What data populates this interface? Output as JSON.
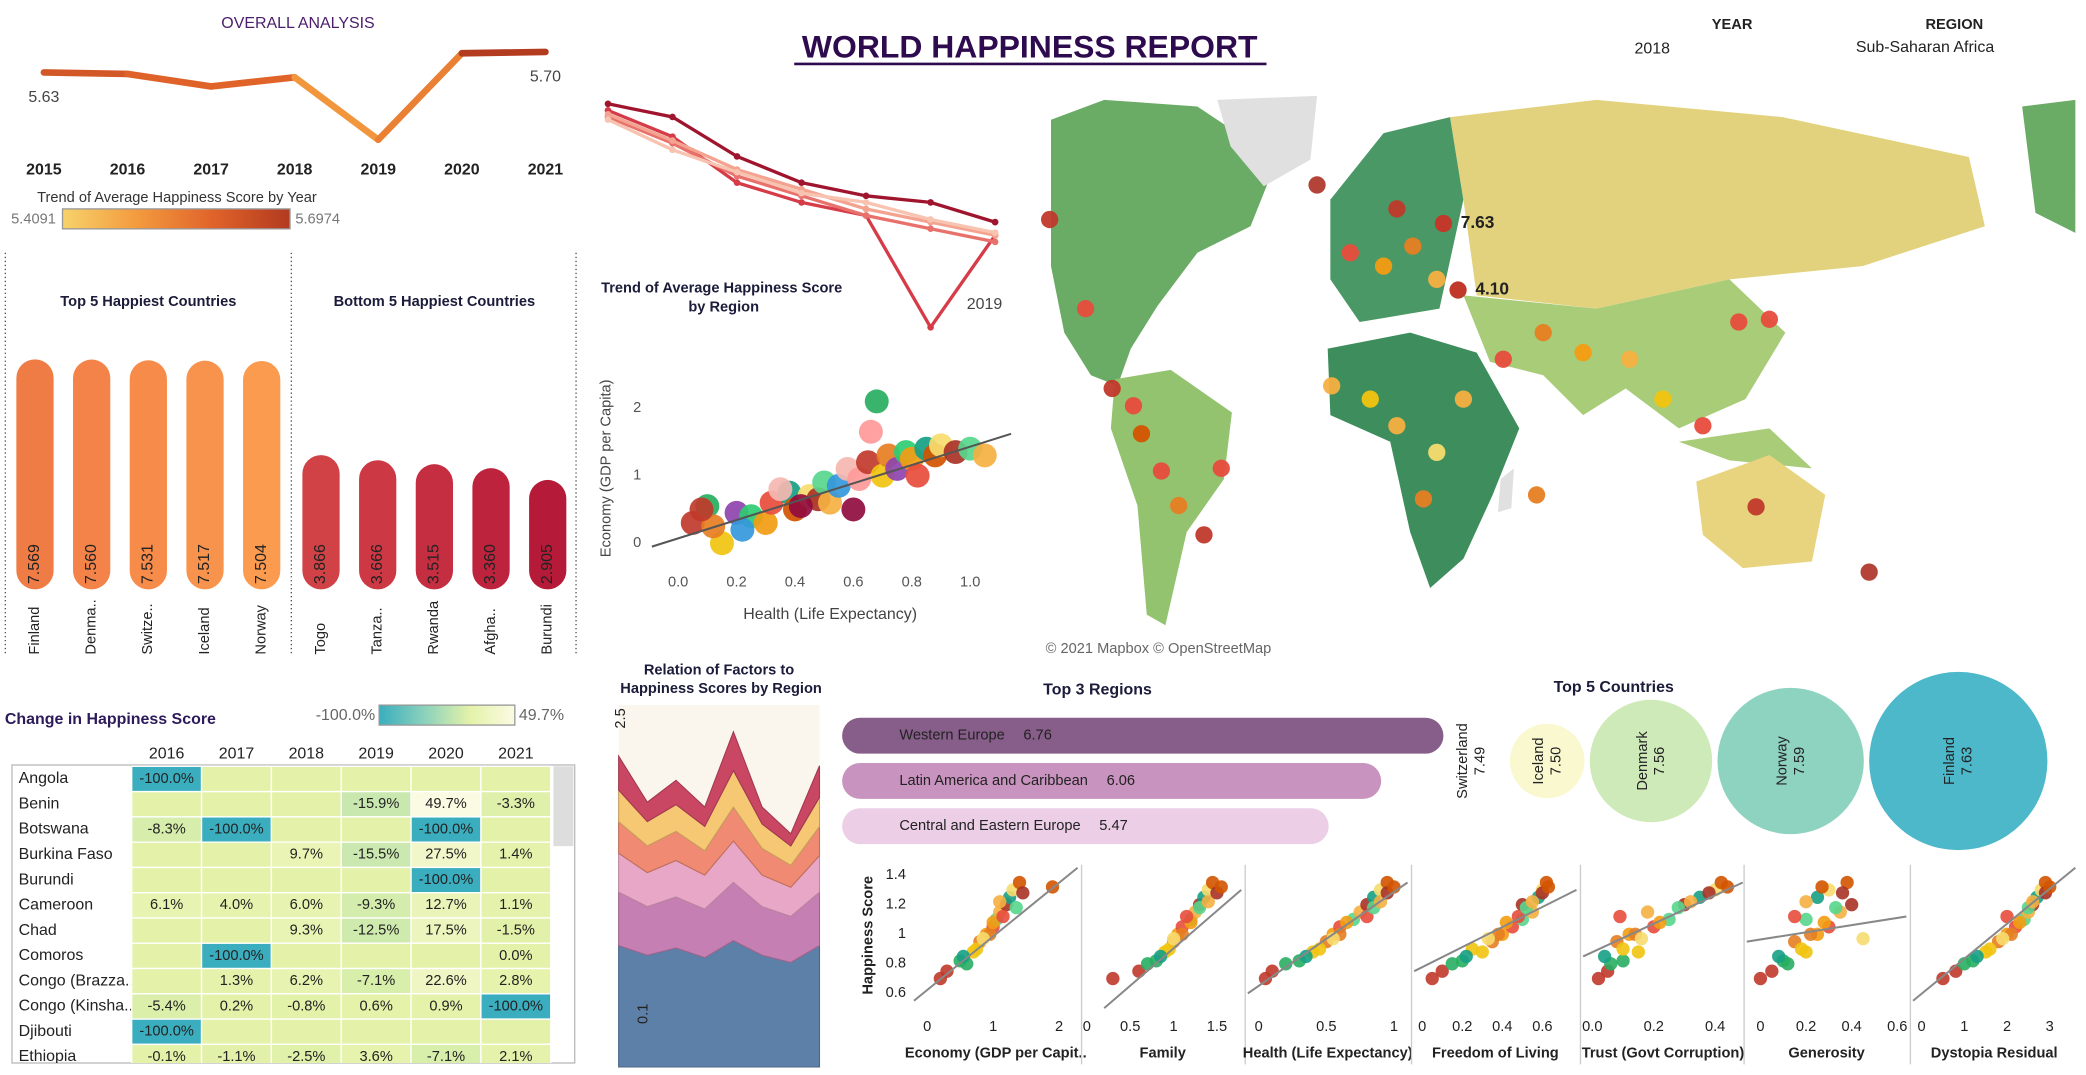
{
  "header": {
    "title": "WORLD HAPPINESS REPORT"
  },
  "filters": {
    "year_label": "YEAR",
    "year": 2018,
    "region_label": "REGION",
    "region": "Sub-Saharan Africa"
  },
  "chart_data": [
    {
      "type": "line",
      "title": "OVERALL ANALYSIS",
      "subtitle": "Trend of Average Happiness Score by Year",
      "categories": [
        2015,
        2016,
        2017,
        2018,
        2019,
        2020,
        2021
      ],
      "values": [
        5.63,
        5.625,
        5.584,
        5.614,
        5.4091,
        5.693,
        5.6974
      ],
      "value_labels": [
        "5.63",
        null,
        null,
        null,
        null,
        null,
        "5.70"
      ],
      "color_range": [
        5.4091,
        5.6974
      ]
    },
    {
      "type": "bar",
      "title": "Top 5 Happiest Countries",
      "categories": [
        "Finland",
        "Denma..",
        "Switze..",
        "Iceland",
        "Norway"
      ],
      "values": [
        7.569,
        7.56,
        7.531,
        7.517,
        7.504
      ],
      "value_labels": [
        "7.569",
        "7.560",
        "7.531",
        "7.517",
        "7.504"
      ],
      "colors": [
        "#f07c45",
        "#f38348",
        "#f68b4a",
        "#f8934d",
        "#fb9b50"
      ]
    },
    {
      "type": "bar",
      "title": "Bottom 5 Happiest Countries",
      "categories": [
        "Togo",
        "Tanza..",
        "Rwanda",
        "Afgha..",
        "Burundi"
      ],
      "values": [
        3.866,
        3.666,
        3.515,
        3.36,
        2.905
      ],
      "value_labels": [
        "3.866",
        "3.666",
        "3.515",
        "3.360",
        "2.905"
      ],
      "colors": [
        "#d04245",
        "#cc3844",
        "#c52e41",
        "#bd233d",
        "#b51b38"
      ]
    },
    {
      "type": "line",
      "title": "Trend of Average Happiness Score by Region",
      "annotation": 2019,
      "series": [
        {
          "color": "#a0152e",
          "values": [
            7.6,
            7.5,
            7.2,
            7.0,
            6.9,
            6.85,
            6.7
          ]
        },
        {
          "color": "#d63c48",
          "values": [
            7.55,
            7.35,
            7.0,
            6.85,
            6.75,
            5.9,
            6.6
          ]
        },
        {
          "color": "#e8716b",
          "values": [
            7.5,
            7.3,
            7.05,
            6.9,
            6.75,
            6.65,
            6.55
          ]
        },
        {
          "color": "#f3a38f",
          "values": [
            7.52,
            7.32,
            7.1,
            6.95,
            6.8,
            6.7,
            6.6
          ]
        },
        {
          "color": "#f8c3b0",
          "values": [
            7.48,
            7.25,
            7.08,
            6.92,
            6.85,
            6.72,
            6.62
          ]
        }
      ]
    },
    {
      "type": "scatter",
      "x_label": "Health (Life Expectancy)",
      "y_label": "Economy (GDP per Capita)",
      "xlim": [
        -0.09,
        1.14
      ],
      "xticks": [
        {
          "value": 0,
          "label": "0.0"
        },
        0.2,
        0.4,
        0.6,
        0.8,
        {
          "value": 1,
          "label": "1.0"
        }
      ],
      "ylim": [
        -0.23,
        2.33
      ],
      "yticks": [
        0,
        1,
        2
      ],
      "x": [
        0.05,
        0.1,
        0.15,
        0.12,
        0.2,
        0.25,
        0.3,
        0.32,
        0.38,
        0.4,
        0.45,
        0.48,
        0.5,
        0.52,
        0.55,
        0.58,
        0.6,
        0.62,
        0.65,
        0.68,
        0.7,
        0.72,
        0.75,
        0.78,
        0.8,
        0.82,
        0.85,
        0.88,
        0.9,
        0.95,
        1.0,
        1.05,
        0.22,
        0.35,
        0.42,
        0.66,
        0.08
      ],
      "values": [
        0.3,
        0.55,
        0.0,
        0.25,
        0.45,
        0.4,
        0.3,
        0.6,
        0.75,
        0.5,
        0.7,
        0.65,
        0.9,
        0.6,
        0.85,
        1.1,
        0.5,
        0.95,
        1.2,
        2.1,
        1.0,
        1.3,
        1.1,
        1.35,
        1.25,
        1.0,
        1.4,
        1.3,
        1.45,
        1.35,
        1.4,
        1.3,
        0.2,
        0.8,
        0.55,
        1.65,
        0.5
      ],
      "trend": {
        "x": [
          -0.09,
          1.14
        ],
        "values": [
          -0.05,
          1.62
        ]
      },
      "palette": [
        "#c0392b",
        "#27ae60",
        "#f1c40f",
        "#e67e22",
        "#8e44ad",
        "#2ecc71",
        "#f39c12",
        "#e74c3c",
        "#16a085",
        "#d35400",
        "#f7dc6f",
        "#a93226",
        "#58d68d",
        "#f5b041",
        "#3498db",
        "#f5b7b1",
        "#900c3f",
        "#ff9999"
      ]
    },
    {
      "type": "map",
      "values": [
        7.63,
        4.1
      ],
      "value_labels": [
        "7.63",
        "4.10"
      ],
      "attribution": "© 2021 Mapbox © OpenStreetMap"
    },
    {
      "type": "heatmap",
      "title": "Change in Happiness Score",
      "color_range": [
        {
          "value": -100,
          "label": "-100.0%"
        },
        {
          "value": 49.7,
          "label": "49.7%"
        }
      ],
      "columns": [
        2016,
        2017,
        2018,
        2019,
        2020,
        2021
      ],
      "rows": [
        "Angola",
        "Benin",
        "Botswana",
        "Burkina Faso",
        "Burundi",
        "Cameroon",
        "Chad",
        "Comoros",
        "Congo (Brazza..",
        "Congo (Kinsha..",
        "Djibouti",
        "Ethiopia"
      ],
      "values": [
        [
          -100,
          null,
          null,
          null,
          null,
          null
        ],
        [
          null,
          null,
          null,
          -15.9,
          49.7,
          -3.3
        ],
        [
          -8.3,
          -100,
          null,
          null,
          -100,
          null
        ],
        [
          null,
          null,
          9.7,
          -15.5,
          27.5,
          1.4
        ],
        [
          null,
          null,
          null,
          null,
          -100,
          null
        ],
        [
          6.1,
          4,
          6,
          -9.3,
          12.7,
          1.1
        ],
        [
          null,
          null,
          9.3,
          -12.5,
          17.5,
          -1.5
        ],
        [
          null,
          -100,
          null,
          null,
          null,
          0
        ],
        [
          null,
          1.3,
          6.2,
          -7.1,
          22.6,
          2.8
        ],
        [
          -5.4,
          0.2,
          -0.8,
          0.6,
          0.9,
          -100
        ],
        [
          -100,
          null,
          null,
          null,
          null,
          null
        ],
        [
          -0.1,
          -1.1,
          -2.5,
          3.6,
          -7.1,
          2.1
        ]
      ],
      "value_labels": [
        [
          "-100.0%",
          null,
          null,
          null,
          null,
          null
        ],
        [
          null,
          null,
          null,
          "-15.9%",
          "49.7%",
          "-3.3%"
        ],
        [
          "-8.3%",
          "-100.0%",
          null,
          null,
          "-100.0%",
          null
        ],
        [
          null,
          null,
          "9.7%",
          "-15.5%",
          "27.5%",
          "1.4%"
        ],
        [
          null,
          null,
          null,
          null,
          "-100.0%",
          null
        ],
        [
          "6.1%",
          "4.0%",
          "6.0%",
          "-9.3%",
          "12.7%",
          "1.1%"
        ],
        [
          null,
          null,
          "9.3%",
          "-12.5%",
          "17.5%",
          "-1.5%"
        ],
        [
          null,
          "-100.0%",
          null,
          null,
          null,
          "0.0%"
        ],
        [
          null,
          "1.3%",
          "6.2%",
          "-7.1%",
          "22.6%",
          "2.8%"
        ],
        [
          "-5.4%",
          "0.2%",
          "-0.8%",
          "0.6%",
          "0.9%",
          "-100.0%"
        ],
        [
          "-100.0%",
          null,
          null,
          null,
          null,
          null
        ],
        [
          "-0.1%",
          "-1.1%",
          "-2.5%",
          "3.6%",
          "-7.1%",
          "2.1%"
        ]
      ]
    },
    {
      "type": "area",
      "stacked": true,
      "title": "Relation of Factors to Happiness Scores by Region",
      "annotations": [
        2.5,
        0.1
      ],
      "series": [
        {
          "color": "#5d80a8",
          "values": [
            5.0,
            4.6,
            4.9,
            4.5,
            5.2,
            4.6,
            4.3,
            5.0
          ]
        },
        {
          "color": "#c67fb2",
          "values": [
            2.2,
            2.0,
            2.1,
            2.0,
            2.4,
            2.0,
            1.9,
            2.2
          ]
        },
        {
          "color": "#e9a7c8",
          "values": [
            1.6,
            1.4,
            1.5,
            1.4,
            1.7,
            1.3,
            1.2,
            1.5
          ]
        },
        {
          "color": "#f08a72",
          "values": [
            1.3,
            1.1,
            1.2,
            1.0,
            1.4,
            1.1,
            0.9,
            1.2
          ]
        },
        {
          "color": "#f7c873",
          "values": [
            1.3,
            1.0,
            1.1,
            1.0,
            1.5,
            1.0,
            0.8,
            1.2
          ]
        },
        {
          "color": "#c94763",
          "values": [
            1.4,
            0.8,
            1.0,
            0.8,
            1.6,
            0.7,
            0.5,
            1.3
          ]
        }
      ]
    },
    {
      "type": "bar",
      "orientation": "horizontal",
      "title": "Top 3 Regions",
      "categories": [
        "Western Europe",
        "Latin America and Caribbean",
        "Central and Eastern Europe"
      ],
      "values": [
        6.76,
        6.06,
        5.47
      ],
      "colors": [
        "#875d89",
        "#c893bf",
        "#eccfe7"
      ]
    },
    {
      "type": "bubble",
      "title": "Top 5 Countries",
      "categories": [
        "Switzerland",
        "Iceland",
        "Denmark",
        "Norway",
        "Finland"
      ],
      "values": [
        7.49,
        7.5,
        7.56,
        7.59,
        7.63
      ],
      "value_labels": [
        "7.49",
        "7.50",
        "7.56",
        "7.59",
        "7.63"
      ],
      "colors": [
        "#ffffff",
        "#f9f8cf",
        "#cdeab8",
        "#8ed3c0",
        "#4cb8c9"
      ]
    },
    {
      "type": "scatter",
      "y_label": "Happiness Score",
      "ylim": [
        0.48,
        1.47
      ],
      "yticks": [
        0.6,
        0.8,
        1,
        1.2,
        1.4
      ],
      "palette": [
        "#c0392b",
        "#27ae60",
        "#f1c40f",
        "#e67e22",
        "#f39c12",
        "#e74c3c",
        "#58d68d",
        "#f5b041",
        "#a93226",
        "#16a085",
        "#f7dc6f",
        "#d35400"
      ],
      "values": [
        0.75,
        0.82,
        0.88,
        0.95,
        1.0,
        1.05,
        1.1,
        1.15,
        1.2,
        1.25,
        1.3,
        1.35,
        0.7,
        0.8,
        0.9,
        1.0,
        1.08,
        1.12,
        1.18,
        1.22,
        1.28,
        0.85,
        0.97,
        1.32
      ],
      "panels": [
        {
          "x_label": "Economy (GDP per Capit..",
          "xlim": [
            -0.2,
            2.28
          ],
          "xticks": [
            0,
            1,
            2
          ],
          "x": [
            0.3,
            0.5,
            0.7,
            0.8,
            0.9,
            1.0,
            1.05,
            1.1,
            1.2,
            1.25,
            1.3,
            1.4,
            0.2,
            0.6,
            0.75,
            0.95,
            1.0,
            1.15,
            1.35,
            1.1,
            1.45,
            0.55,
            0.85,
            1.9
          ],
          "trend": {
            "x": [
              -0.2,
              2.28
            ],
            "values": [
              0.55,
              1.45
            ]
          }
        },
        {
          "x_label": "Family",
          "xlim": [
            -0.03,
            1.78
          ],
          "xticks": [
            0,
            0.5,
            1,
            1.5
          ],
          "x": [
            0.6,
            0.8,
            0.9,
            1.0,
            1.05,
            1.1,
            1.2,
            1.25,
            1.3,
            1.35,
            1.4,
            1.45,
            0.3,
            0.7,
            0.95,
            1.1,
            1.2,
            1.15,
            1.3,
            1.4,
            1.5,
            0.85,
            1.0,
            1.55
          ],
          "trend": {
            "x": [
              0.2,
              1.78
            ],
            "values": [
              0.5,
              1.3
            ]
          }
        },
        {
          "x_label": "Health (Life Expectancy)",
          "xlim": [
            -0.08,
            1.1
          ],
          "xticks": [
            0,
            0.5,
            1
          ],
          "x": [
            0.1,
            0.3,
            0.4,
            0.5,
            0.55,
            0.6,
            0.7,
            0.75,
            0.8,
            0.85,
            0.9,
            0.95,
            0.05,
            0.2,
            0.45,
            0.6,
            0.65,
            0.8,
            0.85,
            0.9,
            0.95,
            0.35,
            0.55,
            1.0
          ],
          "trend": {
            "x": [
              -0.08,
              1.1
            ],
            "values": [
              0.6,
              1.35
            ]
          }
        },
        {
          "x_label": "Freedom of Living",
          "xlim": [
            -0.04,
            0.77
          ],
          "xticks": [
            0,
            0.2,
            0.4,
            0.6
          ],
          "x": [
            0.1,
            0.2,
            0.3,
            0.35,
            0.4,
            0.45,
            0.5,
            0.55,
            0.5,
            0.58,
            0.6,
            0.62,
            0.05,
            0.15,
            0.25,
            0.38,
            0.42,
            0.48,
            0.52,
            0.55,
            0.6,
            0.22,
            0.33,
            0.63
          ],
          "trend": {
            "x": [
              -0.04,
              0.77
            ],
            "values": [
              0.75,
              1.3
            ]
          }
        },
        {
          "x_label": "Trust (Govt Corruption)",
          "xlim": [
            -0.03,
            0.49
          ],
          "xticks": [
            {
              "value": 0,
              "label": "0.0"
            },
            0.2,
            0.4
          ],
          "x": [
            0.05,
            0.1,
            0.15,
            0.08,
            0.12,
            0.2,
            0.25,
            0.18,
            0.3,
            0.35,
            0.4,
            0.42,
            0.02,
            0.06,
            0.1,
            0.14,
            0.22,
            0.09,
            0.28,
            0.32,
            0.38,
            0.04,
            0.16,
            0.44
          ],
          "trend": {
            "x": [
              -0.03,
              0.49
            ],
            "values": [
              0.85,
              1.35
            ]
          }
        },
        {
          "x_label": "Generosity",
          "xlim": [
            -0.06,
            0.64
          ],
          "xticks": [
            0,
            0.2,
            0.4,
            0.6
          ],
          "x": [
            0.05,
            0.1,
            0.2,
            0.15,
            0.25,
            0.3,
            0.2,
            0.35,
            0.4,
            0.25,
            0.3,
            0.38,
            0.0,
            0.12,
            0.18,
            0.22,
            0.28,
            0.15,
            0.33,
            0.2,
            0.36,
            0.08,
            0.45,
            0.27
          ],
          "trend": {
            "x": [
              -0.06,
              0.64
            ],
            "values": [
              0.95,
              1.12
            ]
          }
        },
        {
          "x_label": "Dystopia Residual",
          "xlim": [
            -0.2,
            3.6
          ],
          "xticks": [
            0,
            1,
            2,
            3
          ],
          "x": [
            0.8,
            1.2,
            1.5,
            1.8,
            2.0,
            2.2,
            2.4,
            2.5,
            2.6,
            2.7,
            2.8,
            2.9,
            0.5,
            1.0,
            1.6,
            2.1,
            2.3,
            2.0,
            2.5,
            2.6,
            2.9,
            1.3,
            1.9,
            3.0
          ],
          "trend": {
            "x": [
              -0.2,
              3.6
            ],
            "values": [
              0.55,
              1.45
            ]
          }
        }
      ]
    }
  ]
}
